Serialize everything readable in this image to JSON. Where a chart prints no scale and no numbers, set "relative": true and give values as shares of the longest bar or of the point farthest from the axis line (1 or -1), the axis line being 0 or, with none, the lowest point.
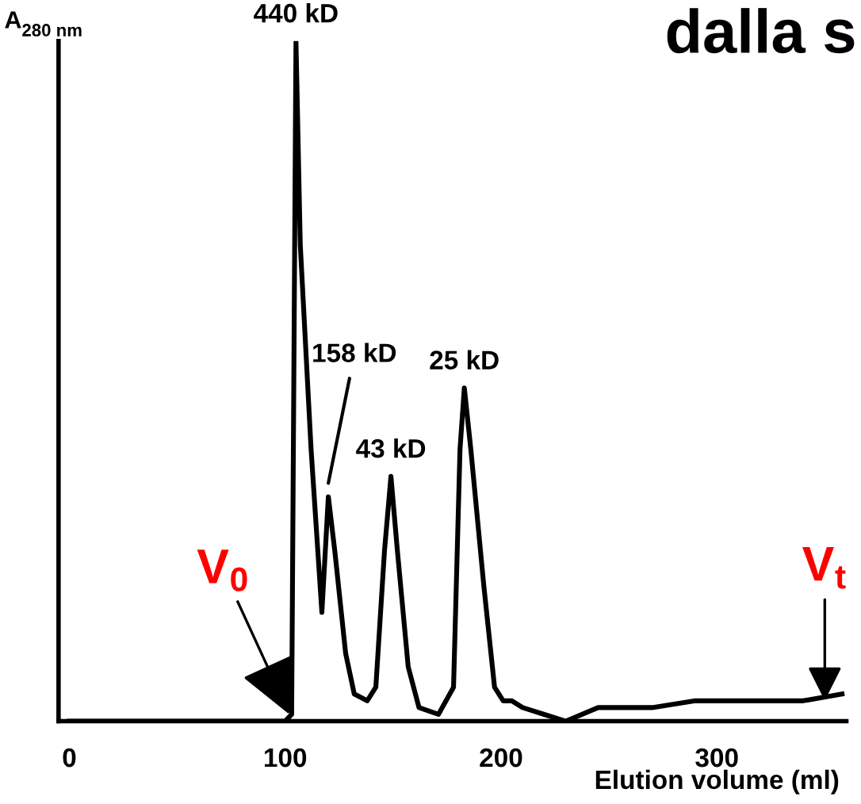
{
  "chart_data": {
    "type": "line",
    "title": "dalla s",
    "xlabel": "Elution volume (ml)",
    "ylabel": "A$_{280 nm}$",
    "relative": true,
    "x": [
      0,
      100,
      103,
      104,
      105,
      107,
      112,
      117,
      120,
      123,
      128,
      132,
      138,
      142,
      146,
      149,
      152,
      157,
      162,
      171,
      178,
      181,
      183,
      186,
      192,
      197,
      201,
      205,
      210,
      220,
      230,
      245,
      270,
      290,
      300,
      320,
      340,
      358
    ],
    "series": [
      {
        "color": "#000000",
        "values": [
          0,
          0,
          0.01,
          0.5,
          1.0,
          0.7,
          0.4,
          0.16,
          0.33,
          0.25,
          0.1,
          0.04,
          0.03,
          0.05,
          0.25,
          0.36,
          0.25,
          0.08,
          0.02,
          0.01,
          0.05,
          0.4,
          0.49,
          0.4,
          0.2,
          0.05,
          0.03,
          0.03,
          0.02,
          0.01,
          0.0,
          0.02,
          0.02,
          0.03,
          0.03,
          0.03,
          0.03,
          0.04
        ]
      }
    ],
    "xlim": [
      -5,
      360
    ],
    "xticks": [
      0,
      100,
      200,
      300
    ],
    "grid": false,
    "marker": "none",
    "line_style": "solid",
    "annotations": [
      {
        "text": "440 kD",
        "x": 105,
        "y": 1.0
      },
      {
        "text": "158 kD",
        "x": 120,
        "y": 0.33
      },
      {
        "text": "43 kD",
        "x": 149,
        "y": 0.36
      },
      {
        "text": "25 kD",
        "x": 183,
        "y": 0.49
      },
      {
        "text": "V$_{0}$",
        "x": 102,
        "y": 0.01
      },
      {
        "text": "V$_{t}$",
        "x": 350,
        "y": 0.03
      }
    ]
  }
}
